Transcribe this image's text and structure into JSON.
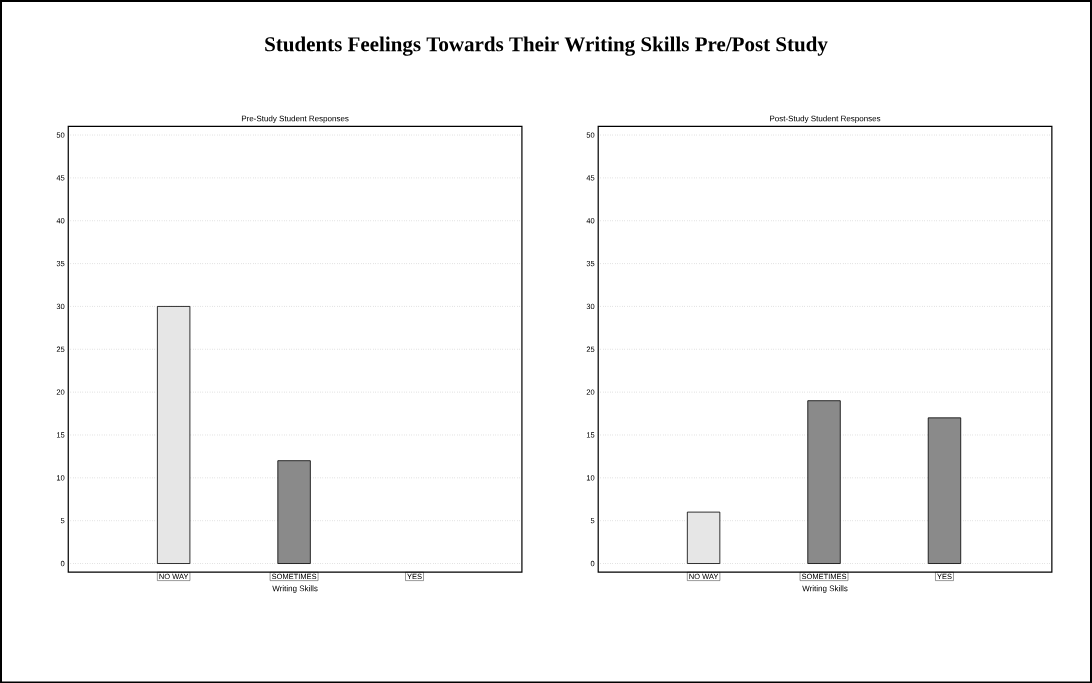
{
  "chart_data": [
    {
      "type": "bar",
      "title": "Students Feelings Towards Their Writing Skills Pre/Post Study",
      "subtitle": "Pre-Study Student Responses",
      "xlabel": "Writing Skills",
      "categories": [
        "NO WAY",
        "SOMETIMES",
        "YES"
      ],
      "values": [
        30,
        12,
        0
      ],
      "colors": [
        "#e6e6e6",
        "#8a8a8a",
        "#8a8a8a"
      ],
      "ylim": [
        -1,
        51
      ],
      "yticks": [
        0,
        5,
        10,
        15,
        20,
        25,
        30,
        35,
        40,
        45,
        50
      ],
      "grid": "y"
    },
    {
      "type": "bar",
      "title": "Post-Study Student Responses",
      "xlabel": "Writing Skills",
      "categories": [
        "NO WAY",
        "SOMETIMES",
        "YES"
      ],
      "values": [
        6,
        19,
        17
      ],
      "colors": [
        "#e6e6e6",
        "#8a8a8a",
        "#8a8a8a"
      ],
      "ylim": [
        -1,
        51
      ],
      "yticks": [
        0,
        5,
        10,
        15,
        20,
        25,
        30,
        35,
        40,
        45,
        50
      ],
      "grid": "y"
    }
  ]
}
